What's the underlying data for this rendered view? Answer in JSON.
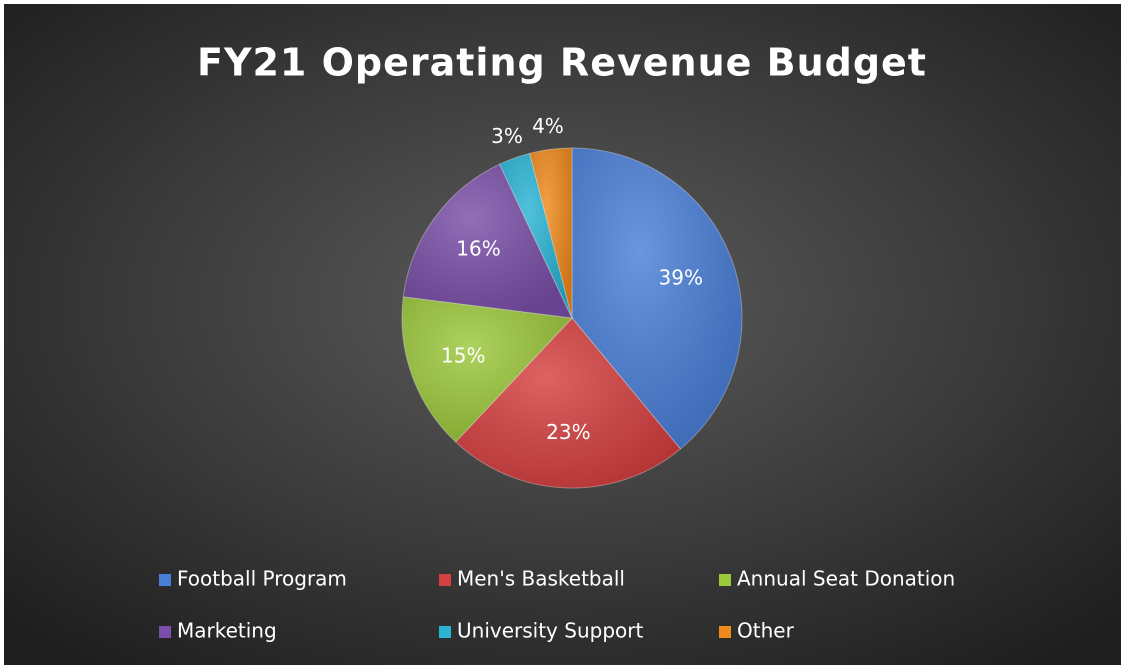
{
  "chart_data": {
    "type": "pie",
    "title": "FY21 Operating Revenue Budget",
    "categories": [
      "Football Program",
      "Men's Basketball",
      "Annual Seat Donation",
      "Marketing",
      "University Support",
      "Other"
    ],
    "values": [
      39,
      23,
      15,
      16,
      3,
      4
    ],
    "value_labels": [
      "39%",
      "23%",
      "15%",
      "16%",
      "3%",
      "4%"
    ],
    "colors": [
      "#4a7fd8",
      "#d64040",
      "#9cc83c",
      "#7a4fa8",
      "#2ab4d4",
      "#f08a1c"
    ],
    "legend": "bottom"
  }
}
